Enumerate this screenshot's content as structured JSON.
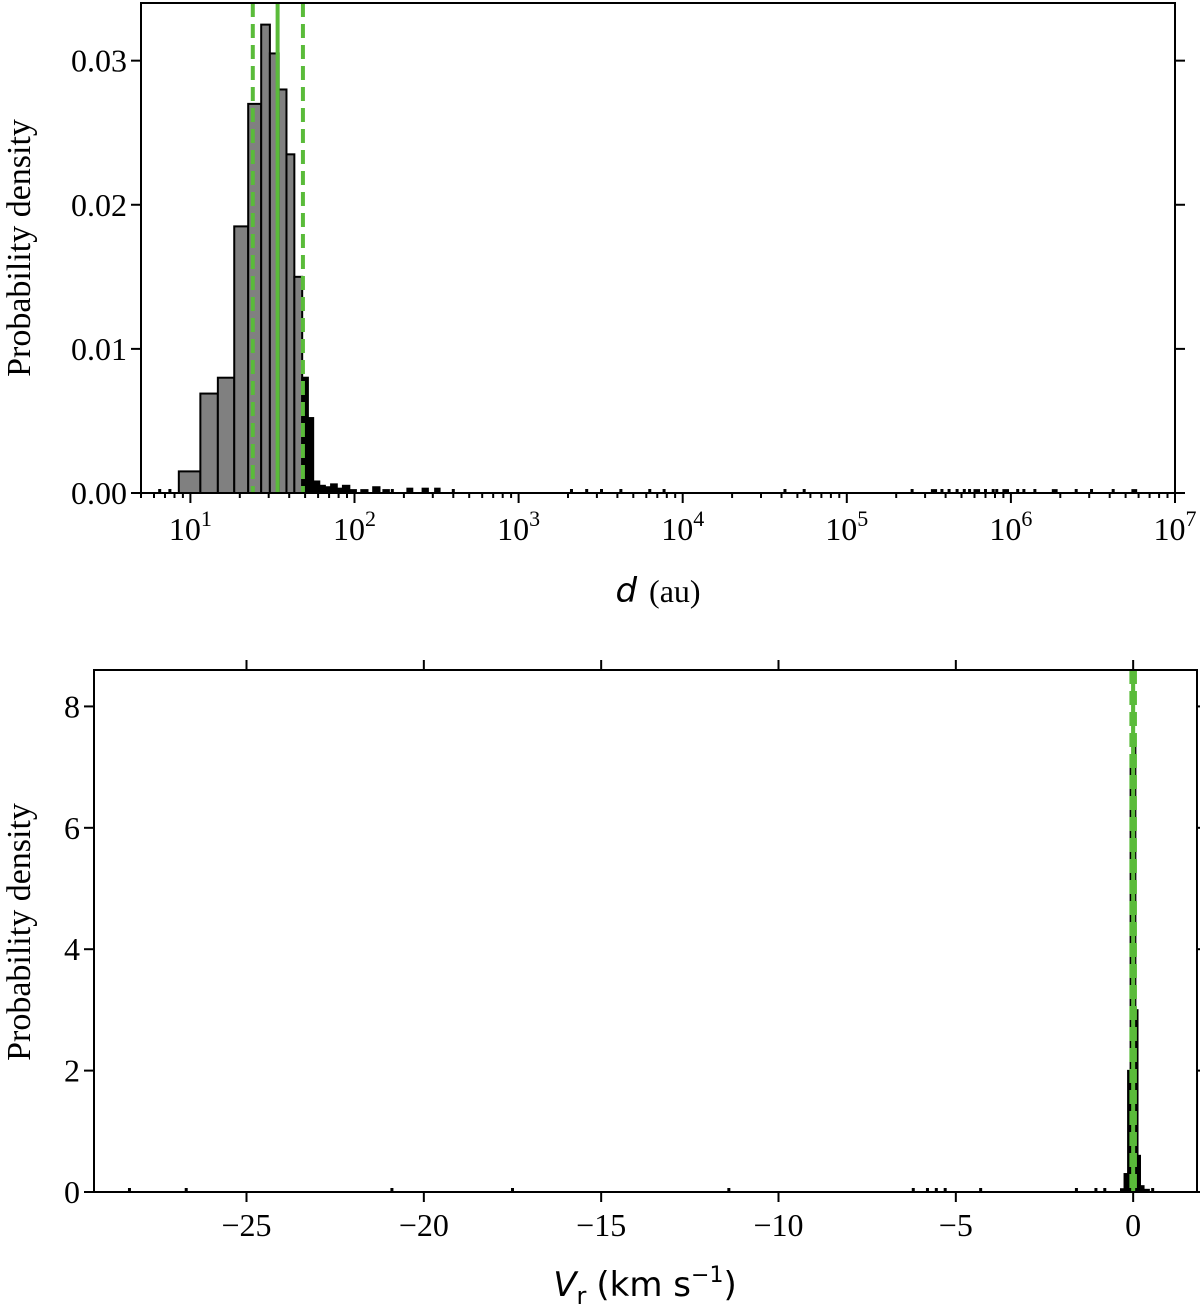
{
  "chart_data": [
    {
      "type": "bar",
      "xlabel_var": "d",
      "xlabel_unit": "(au)",
      "ylabel": "Probability density",
      "xscale": "log",
      "xlim": [
        5,
        10000000
      ],
      "ylim": [
        0,
        0.034
      ],
      "yticks": [
        "0.00",
        "0.01",
        "0.02",
        "0.03"
      ],
      "ytick_values": [
        0,
        0.01,
        0.02,
        0.03
      ],
      "xticks": [
        {
          "base": "10",
          "exp": "1",
          "value": 10
        },
        {
          "base": "10",
          "exp": "2",
          "value": 100
        },
        {
          "base": "10",
          "exp": "3",
          "value": 1000
        },
        {
          "base": "10",
          "exp": "4",
          "value": 10000
        },
        {
          "base": "10",
          "exp": "5",
          "value": 100000
        },
        {
          "base": "10",
          "exp": "6",
          "value": 1000000
        },
        {
          "base": "10",
          "exp": "7",
          "value": 10000000
        }
      ],
      "bins": [
        {
          "x0": 8.5,
          "x1": 11.5,
          "y": 0.0015,
          "fill": "#808080"
        },
        {
          "x0": 11.5,
          "x1": 14.7,
          "y": 0.0069,
          "fill": "#808080"
        },
        {
          "x0": 14.7,
          "x1": 18.5,
          "y": 0.008,
          "fill": "#808080"
        },
        {
          "x0": 18.5,
          "x1": 22.5,
          "y": 0.0185,
          "fill": "#808080"
        },
        {
          "x0": 22.5,
          "x1": 27.0,
          "y": 0.027,
          "fill": "#808080"
        },
        {
          "x0": 27.0,
          "x1": 30.5,
          "y": 0.0325,
          "fill": "#808080"
        },
        {
          "x0": 30.5,
          "x1": 34.5,
          "y": 0.0305,
          "fill": "#808080"
        },
        {
          "x0": 34.5,
          "x1": 38.5,
          "y": 0.028,
          "fill": "#808080"
        },
        {
          "x0": 38.5,
          "x1": 43.0,
          "y": 0.0235,
          "fill": "#808080"
        },
        {
          "x0": 43.0,
          "x1": 48.0,
          "y": 0.015,
          "fill": "#808080"
        },
        {
          "x0": 48.0,
          "x1": 52.0,
          "y": 0.008,
          "fill": "#000000"
        },
        {
          "x0": 52.0,
          "x1": 56.0,
          "y": 0.0052,
          "fill": "#000000"
        },
        {
          "x0": 56.0,
          "x1": 61.0,
          "y": 0.0008,
          "fill": "#000000"
        },
        {
          "x0": 61.0,
          "x1": 66.0,
          "y": 0.0005,
          "fill": "#000000"
        },
        {
          "x0": 66.0,
          "x1": 72.0,
          "y": 0.0004,
          "fill": "#000000"
        },
        {
          "x0": 72.0,
          "x1": 78.0,
          "y": 0.0006,
          "fill": "#000000"
        },
        {
          "x0": 78.0,
          "x1": 85.0,
          "y": 0.0003,
          "fill": "#000000"
        },
        {
          "x0": 85.0,
          "x1": 93.0,
          "y": 0.0005,
          "fill": "#000000"
        },
        {
          "x0": 93.0,
          "x1": 102.0,
          "y": 0.0002,
          "fill": "#000000"
        },
        {
          "x0": 110.0,
          "x1": 120.0,
          "y": 0.0002,
          "fill": "#000000"
        },
        {
          "x0": 130.0,
          "x1": 142.0,
          "y": 0.0004,
          "fill": "#000000"
        },
        {
          "x0": 150.0,
          "x1": 162.0,
          "y": 0.0002,
          "fill": "#000000"
        },
        {
          "x0": 210.0,
          "x1": 225.0,
          "y": 0.0003,
          "fill": "#000000"
        },
        {
          "x0": 260.0,
          "x1": 280.0,
          "y": 0.0003,
          "fill": "#000000"
        },
        {
          "x0": 310.0,
          "x1": 330.0,
          "y": 0.0003,
          "fill": "#000000"
        },
        {
          "x0": 330000.0,
          "x1": 350000.0,
          "y": 0.0002,
          "fill": "#000000"
        },
        {
          "x0": 600000.0,
          "x1": 640000.0,
          "y": 0.0002,
          "fill": "#000000"
        },
        {
          "x0": 900000.0,
          "x1": 960000.0,
          "y": 0.0002,
          "fill": "#000000"
        },
        {
          "x0": 1800000.0,
          "x1": 1900000.0,
          "y": 0.0002,
          "fill": "#000000"
        },
        {
          "x0": 5500000.0,
          "x1": 5800000.0,
          "y": 0.0002,
          "fill": "#000000"
        }
      ],
      "vlines": [
        {
          "x": 24.0,
          "style": "dashed"
        },
        {
          "x": 34.0,
          "style": "solid"
        },
        {
          "x": 48.5,
          "style": "dashed"
        }
      ],
      "rug": [
        6.5,
        7.5,
        170,
        400,
        2100,
        2600,
        3200,
        4200,
        6300,
        7700,
        42000,
        55000,
        250000,
        380000,
        420000,
        470000,
        520000,
        560000,
        700000,
        780000,
        820000,
        1100000,
        1200000,
        1400000,
        2500000,
        3100000,
        4200000
      ]
    },
    {
      "type": "bar",
      "xlabel_var": "V",
      "xlabel_sub": "r",
      "xlabel_unit": "(km s",
      "xlabel_exp": "−1",
      "xlabel_close": ")",
      "ylabel": "Probability density",
      "xscale": "linear",
      "xlim": [
        -29.3,
        1.8
      ],
      "ylim": [
        0,
        8.6
      ],
      "yticks": [
        "0",
        "2",
        "4",
        "6",
        "8"
      ],
      "ytick_values": [
        0,
        2,
        4,
        6,
        8
      ],
      "xticks": [
        {
          "label": "−25",
          "value": -25
        },
        {
          "label": "−20",
          "value": -20
        },
        {
          "label": "−15",
          "value": -15
        },
        {
          "label": "−10",
          "value": -10
        },
        {
          "label": "−5",
          "value": -5
        },
        {
          "label": "0",
          "value": 0
        }
      ],
      "bins": [
        {
          "x0": -0.35,
          "x1": -0.25,
          "y": 0.05,
          "fill": "#000000"
        },
        {
          "x0": -0.25,
          "x1": -0.15,
          "y": 0.3,
          "fill": "#000000"
        },
        {
          "x0": -0.15,
          "x1": -0.08,
          "y": 2.0,
          "fill": "#000000"
        },
        {
          "x0": -0.08,
          "x1": -0.03,
          "y": 7.0,
          "fill": "#000000"
        },
        {
          "x0": -0.03,
          "x1": 0.02,
          "y": 8.6,
          "fill": "#000000"
        },
        {
          "x0": 0.02,
          "x1": 0.07,
          "y": 7.5,
          "fill": "#000000"
        },
        {
          "x0": 0.07,
          "x1": 0.13,
          "y": 3.0,
          "fill": "#000000"
        },
        {
          "x0": 0.13,
          "x1": 0.2,
          "y": 0.6,
          "fill": "#000000"
        },
        {
          "x0": 0.2,
          "x1": 0.3,
          "y": 0.1,
          "fill": "#000000"
        },
        {
          "x0": 0.3,
          "x1": 0.45,
          "y": 0.04,
          "fill": "#000000"
        }
      ],
      "vlines": [
        {
          "x": -0.05,
          "style": "dashed"
        },
        {
          "x": 0.0,
          "style": "solid"
        },
        {
          "x": 0.05,
          "style": "dashed"
        }
      ],
      "rug": [
        -28.3,
        -26.7,
        -20.9,
        -17.5,
        -11.4,
        -6.2,
        -5.8,
        -5.55,
        -5.3,
        -4.3,
        -1.6,
        -1.05,
        -0.8,
        0.55
      ]
    }
  ],
  "colors": {
    "gray_bar": "#808080",
    "tail_bar": "#000000",
    "median_line": "#5abb3a",
    "axes": "#000000"
  }
}
